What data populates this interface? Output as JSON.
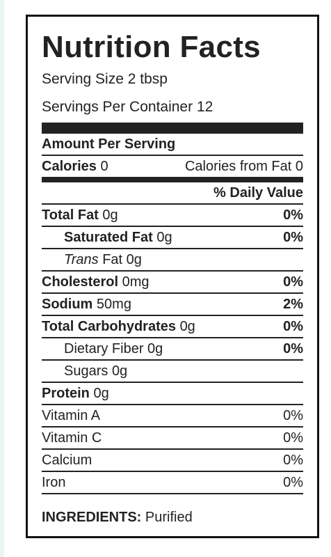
{
  "header": {
    "title": "Nutrition Facts",
    "serving_size_label": "Serving Size",
    "serving_size": "2 tbsp",
    "servings_label": "Servings Per Container",
    "servings": "12"
  },
  "amount_per_serving": "Amount Per Serving",
  "calories": {
    "label": "Calories",
    "value": "0",
    "from_fat_label": "Calories from Fat",
    "from_fat": "0"
  },
  "daily_value_header": "% Daily Value",
  "nutrients": [
    {
      "name": "Total Fat",
      "amount": "0g",
      "dv": "0%"
    },
    {
      "name": "Saturated Fat",
      "amount": "0g",
      "dv": "0%"
    },
    {
      "name_italic": "Trans",
      "name": "Fat",
      "amount": "0g"
    },
    {
      "name": "Cholesterol",
      "amount": "0mg",
      "dv": "0%"
    },
    {
      "name": "Sodium",
      "amount": "50mg",
      "dv": "2%"
    },
    {
      "name": "Total Carbohydrates",
      "amount": "0g",
      "dv": "0%"
    },
    {
      "name": "Dietary Fiber",
      "amount": "0g",
      "dv": "0%"
    },
    {
      "name": "Sugars",
      "amount": "0g"
    },
    {
      "name": "Protein",
      "amount": "0g"
    }
  ],
  "vitamins": [
    {
      "name": "Vitamin A",
      "dv": "0%"
    },
    {
      "name": "Vitamin C",
      "dv": "0%"
    },
    {
      "name": "Calcium",
      "dv": "0%"
    },
    {
      "name": "Iron",
      "dv": "0%"
    }
  ],
  "ingredients": {
    "label": "INGREDIENTS:",
    "text": "Purified"
  }
}
